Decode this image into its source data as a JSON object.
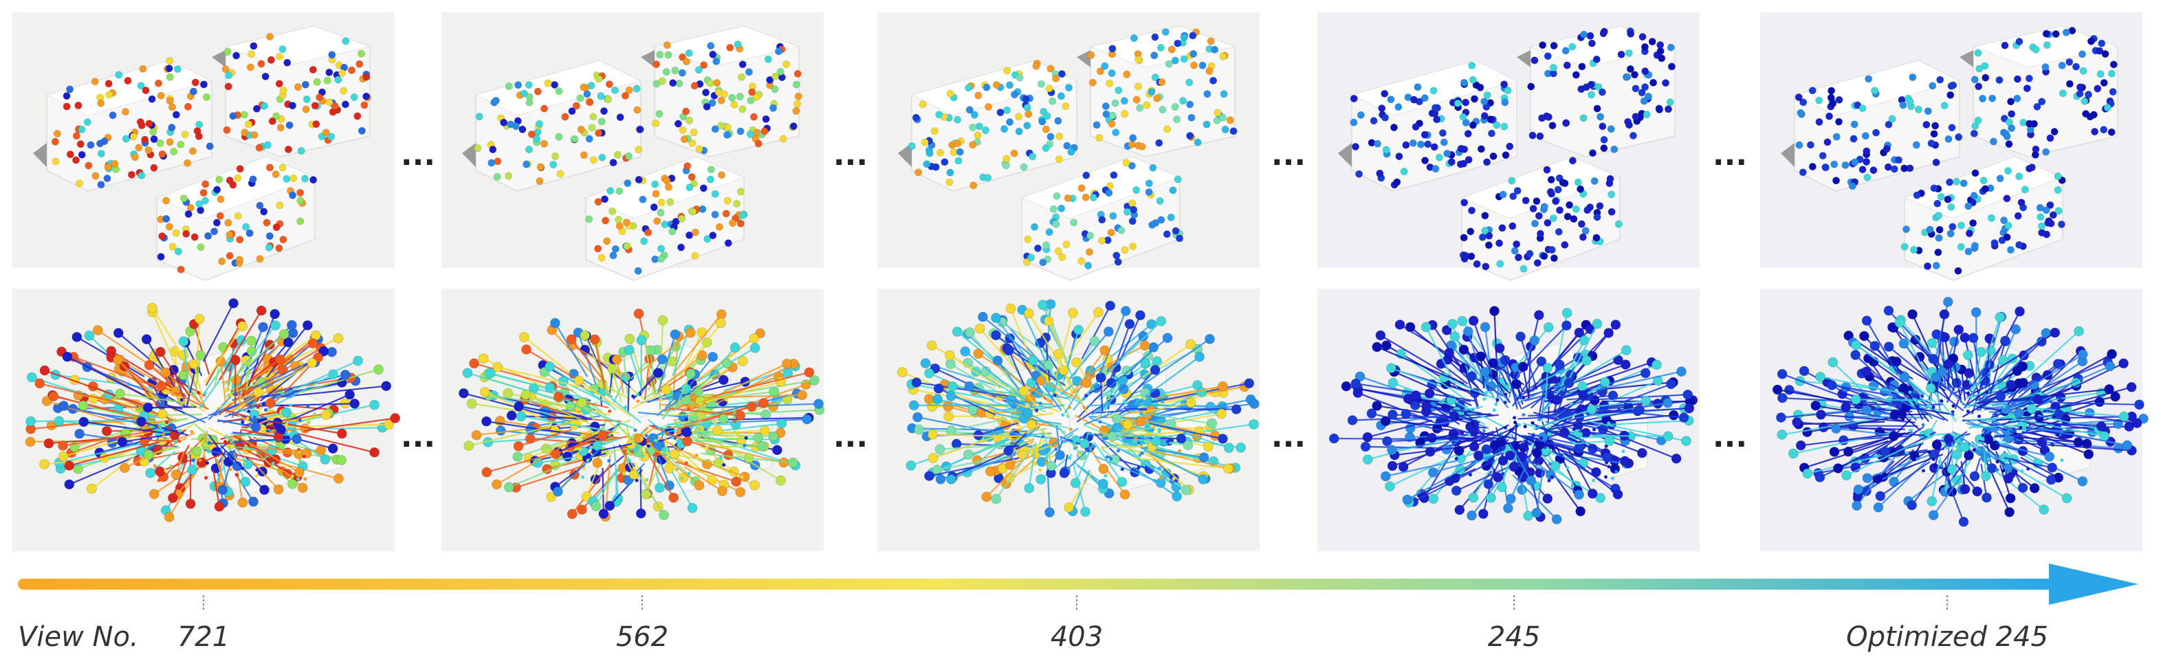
{
  "figure": {
    "view_label": "View No.",
    "panel_labels": [
      "721",
      "562",
      "403",
      "245",
      "Optimized 245"
    ],
    "separator": "...",
    "rows": [
      "surface viewpoints",
      "viewpoints with view directions"
    ],
    "gradient_colors": [
      "#f7a825",
      "#f4e45a",
      "#8fd8a8",
      "#2aa6e8"
    ],
    "dot_palettes": [
      [
        "#d9281e",
        "#ee5a1f",
        "#f59a25",
        "#f5d932",
        "#8fe35a",
        "#3fd6d9",
        "#2a6ae0",
        "#1a1fc8"
      ],
      [
        "#ee5a1f",
        "#f59a25",
        "#f5d932",
        "#bfe24a",
        "#7be08a",
        "#3fd6d9",
        "#2a8ae8",
        "#1a1fc8"
      ],
      [
        "#f59a25",
        "#f5d932",
        "#7be0b0",
        "#3fd6d9",
        "#2fb6e8",
        "#2a8ae8",
        "#1a3ad8"
      ],
      [
        "#3fd6d9",
        "#2a8ae8",
        "#1a3ad8",
        "#1a1fc8",
        "#0a10b0",
        "#1a1fc8"
      ],
      [
        "#3fd6d9",
        "#2a8ae8",
        "#1a3ad8",
        "#1a1fc8",
        "#0a10b0"
      ]
    ]
  }
}
